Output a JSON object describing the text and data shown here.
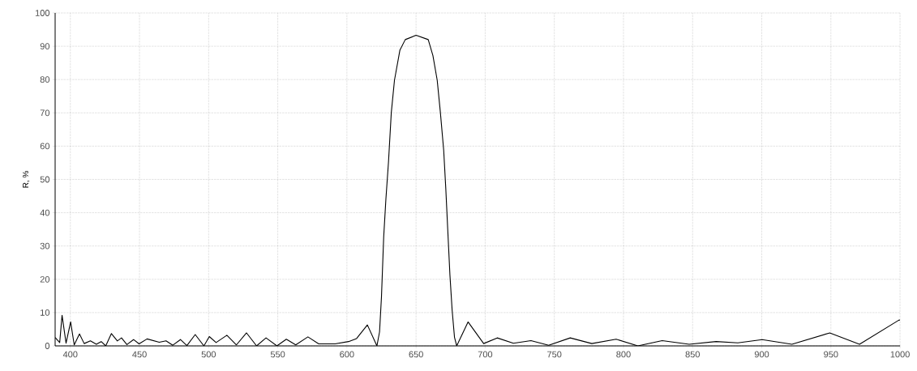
{
  "chart_data": {
    "type": "line",
    "ylabel": "R, %",
    "x": [
      389,
      392.3,
      394.0,
      396.9,
      400.2,
      402.8,
      406.6,
      410,
      414.5,
      418.8,
      422.3,
      425.6,
      429.7,
      434,
      437,
      440.9,
      445.7,
      449.7,
      455.5,
      464.3,
      469.2,
      474.1,
      479.6,
      484.3,
      490.3,
      496.6,
      500.5,
      505.4,
      513.2,
      520.1,
      527.4,
      534.7,
      541.5,
      549.4,
      556.2,
      563,
      571.8,
      579.6,
      591.4,
      601.2,
      607,
      614.8,
      621.7,
      623.6,
      625.0,
      626.6,
      628.2,
      630.1,
      632.1,
      634.4,
      638.3,
      642.2,
      650,
      658.8,
      662.2,
      665.3,
      667.6,
      670,
      671.5,
      672.9,
      674.5,
      676.1,
      677.8,
      679.4,
      687.6,
      698.9,
      708.7,
      720.4,
      733.1,
      745.9,
      761.5,
      777.1,
      794.7,
      810.4,
      828,
      847.5,
      867,
      882.7,
      900.3,
      921.8,
      949.2,
      970.7,
      999,
      1000
    ],
    "series": [
      {
        "color": "#000000",
        "values": [
          2.5,
          1.0,
          9.2,
          0.8,
          7.2,
          0.3,
          3.6,
          0.7,
          1.5,
          0.5,
          1.3,
          0,
          3.7,
          1.5,
          2.4,
          0.4,
          1.9,
          0.6,
          2.1,
          1.1,
          1.5,
          0.2,
          1.9,
          0.1,
          3.4,
          0,
          2.8,
          1.0,
          3.2,
          0.3,
          3.9,
          0,
          2.4,
          0,
          2.0,
          0.3,
          2.7,
          0.6,
          0.6,
          1.3,
          2.2,
          6.3,
          0,
          4.2,
          14.8,
          32.7,
          44.1,
          55.4,
          70.1,
          79.8,
          88.8,
          92.0,
          93.3,
          92.0,
          87.2,
          79.8,
          70.1,
          58.7,
          47.3,
          35.1,
          21.3,
          10.7,
          2.6,
          0,
          7.2,
          0.7,
          2.4,
          0.8,
          1.6,
          0.2,
          2.4,
          0.7,
          2.0,
          0,
          1.6,
          0.5,
          1.3,
          0.9,
          1.9,
          0.5,
          3.9,
          0.5,
          7.7,
          7.8
        ]
      }
    ],
    "xlim": [
      389,
      1000
    ],
    "ylim": [
      0,
      100
    ],
    "xticks": [
      400,
      450,
      500,
      550,
      600,
      650,
      700,
      750,
      800,
      850,
      900,
      950,
      1000
    ],
    "yticks": [
      0,
      10,
      20,
      30,
      40,
      50,
      60,
      70,
      80,
      90,
      100
    ],
    "grid": true,
    "legend": false,
    "marker": "none",
    "line_style": "solid"
  }
}
